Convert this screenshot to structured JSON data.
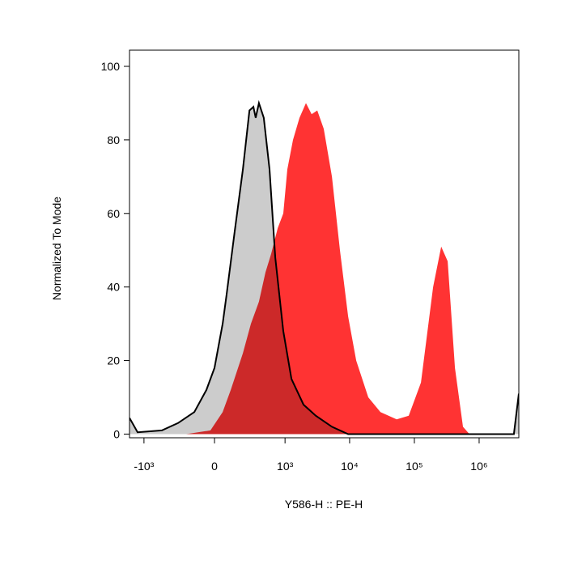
{
  "chart_data": {
    "type": "histogram-overlay",
    "xlabel": "Y586-H :: PE-H",
    "ylabel": "Normalized To Mode",
    "xscale": "biexponential",
    "xlim": [
      -1680,
      4100000
    ],
    "ylim": [
      -1,
      104.4
    ],
    "xticks": [
      {
        "value": -1000,
        "label": "-10³"
      },
      0,
      {
        "value": 1000,
        "label": "10³"
      },
      {
        "value": 10000,
        "label": "10⁴"
      },
      {
        "value": 100000,
        "label": "10⁵"
      },
      {
        "value": 1000000,
        "label": "10⁶"
      }
    ],
    "yticks": [
      0,
      20,
      40,
      60,
      80,
      100
    ],
    "series": [
      {
        "color": "#ff3333",
        "x": [
          -195,
          -24,
          48,
          100,
          195,
          277,
          381,
          489,
          604,
          766,
          940,
          1087,
          1333,
          1680,
          2115,
          2590,
          3170,
          3990,
          5330,
          7100,
          9470,
          12630,
          19430,
          29930,
          53240,
          81950,
          126280,
          194500,
          259300,
          326400,
          422800,
          563500,
          709500
        ],
        "values": [
          0,
          1,
          6,
          12,
          22,
          30,
          36,
          44,
          49,
          56,
          60,
          72,
          80,
          86,
          90,
          87,
          88,
          83,
          70,
          50,
          32,
          20,
          10,
          6,
          4,
          5,
          14,
          40,
          51,
          47,
          18,
          2,
          0
        ]
      },
      {
        "color": "#cccccc",
        "line_color": "#000000",
        "x": [
          -1680,
          -1258,
          -520,
          -277,
          -128,
          -48,
          0,
          48,
          73,
          128,
          195,
          260,
          307,
          336,
          381,
          459,
          569,
          702,
          940,
          1258,
          1940,
          2996,
          5330,
          9470,
          3440000,
          4100000
        ],
        "values": [
          4.4,
          0.5,
          1,
          3,
          6,
          12,
          18,
          30,
          38,
          55,
          72,
          88,
          89,
          86,
          90,
          86,
          72,
          48,
          28,
          15,
          8,
          5,
          2,
          0,
          0,
          11
        ]
      }
    ]
  }
}
